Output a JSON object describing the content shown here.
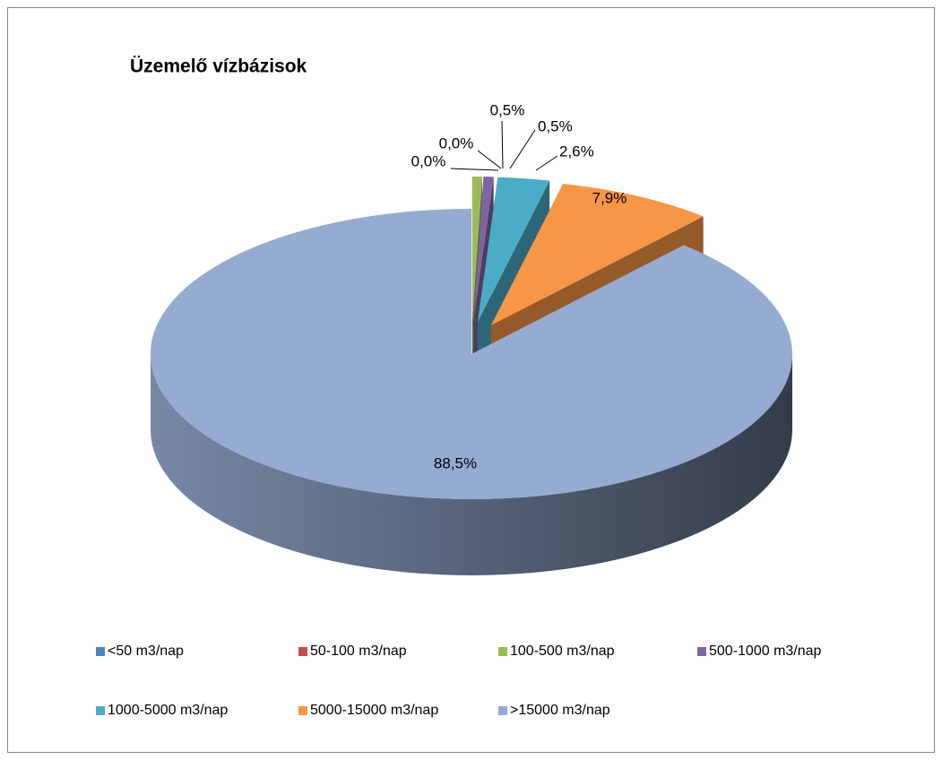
{
  "chart_data": {
    "type": "pie",
    "title": "Üzemelő vízbázisok",
    "categories": [
      "<50 m3/nap",
      "50-100 m3/nap",
      "100-500 m3/nap",
      "500-1000 m3/nap",
      "1000-5000 m3/nap",
      "5000-15000 m3/nap",
      ">15000 m3/nap"
    ],
    "values": [
      0,
      0,
      0.5,
      0.5,
      2.6,
      7.9,
      88.5
    ],
    "value_labels": [
      "0,0%",
      "0,0%",
      "0,5%",
      "0,5%",
      "2,6%",
      "7,9%",
      "88,5%"
    ],
    "colors": [
      "#4f81bd",
      "#c0504d",
      "#9bbb59",
      "#8064a2",
      "#4bacc6",
      "#f79646",
      "#95abd1"
    ],
    "legend": "bottom"
  }
}
